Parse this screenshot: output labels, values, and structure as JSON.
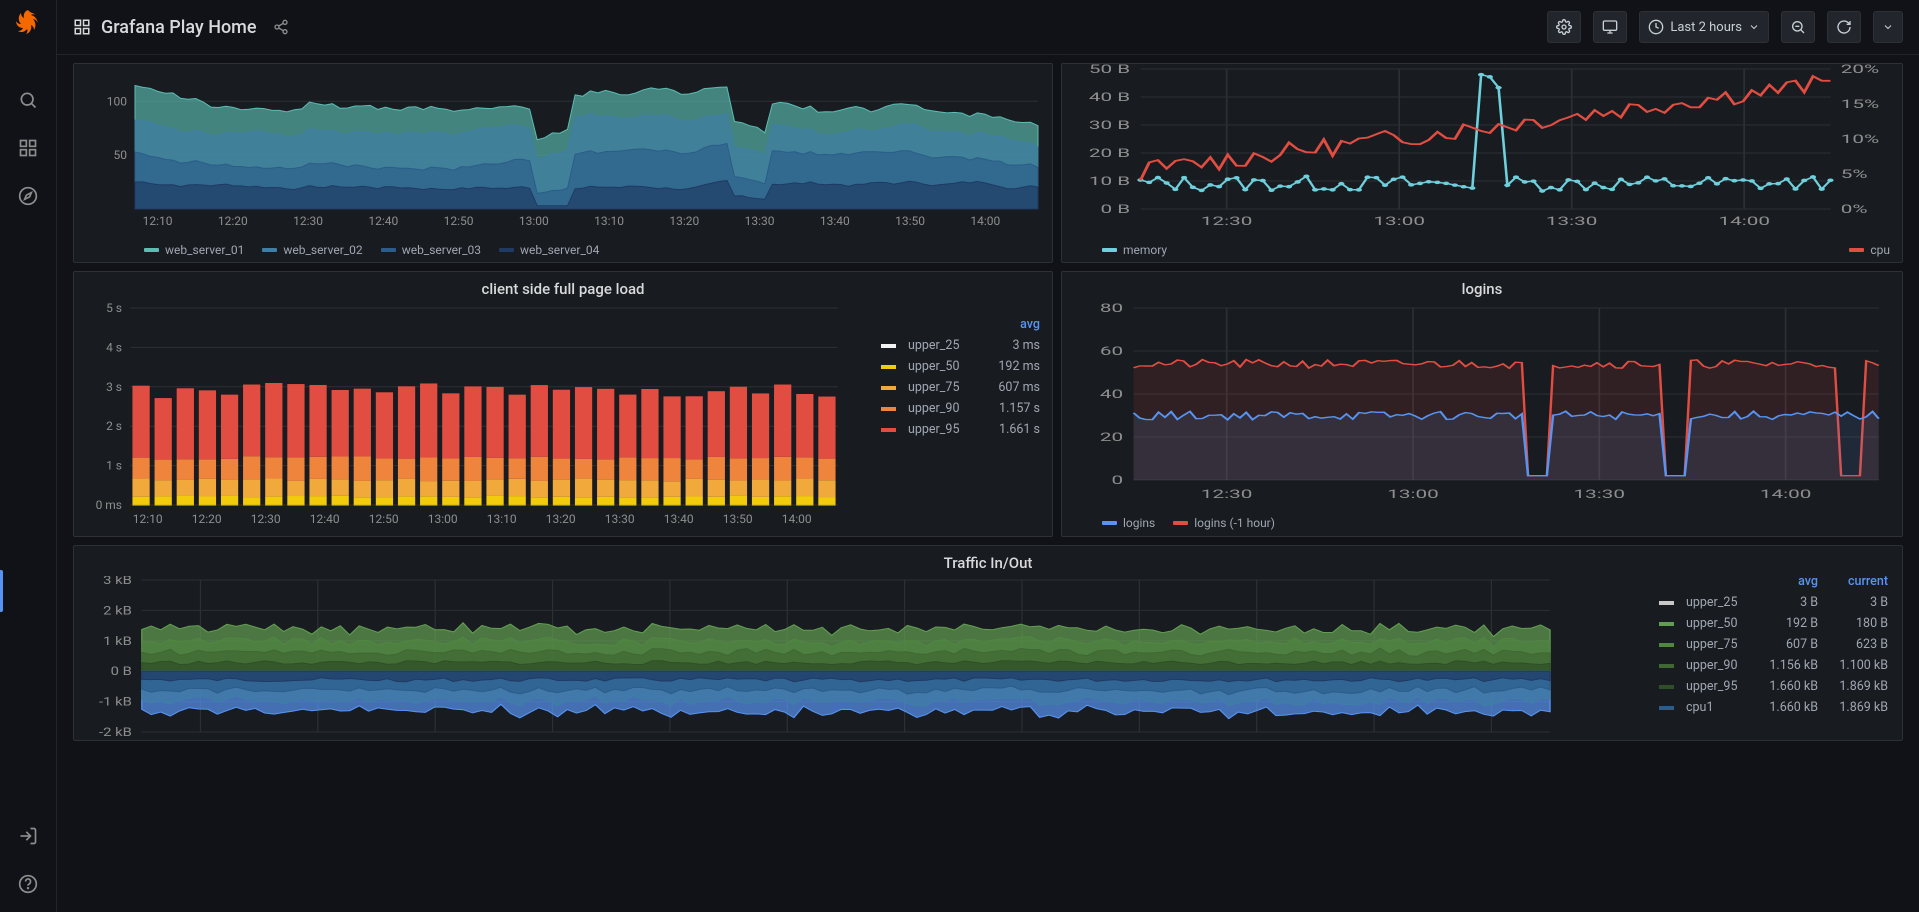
{
  "header": {
    "title": "Grafana Play Home",
    "time_range": "Last 2 hours"
  },
  "colors": {
    "bg": "#111217",
    "panel_bg": "#181b1f",
    "grid": "#2c2f34",
    "tick_text": "#8e8e8e",
    "accent_blue": "#5794f2"
  },
  "time_ticks": [
    "12:10",
    "12:20",
    "12:30",
    "12:40",
    "12:50",
    "13:00",
    "13:10",
    "13:20",
    "13:30",
    "13:40",
    "13:50",
    "14:00"
  ],
  "time_ticks_30": [
    "12:30",
    "13:00",
    "13:30",
    "14:00"
  ],
  "panel_webservers": {
    "type": "area",
    "yticks": [
      50,
      100
    ],
    "ylim": [
      0,
      130
    ],
    "series": [
      {
        "name": "web_server_01",
        "color": "#5bbdb4"
      },
      {
        "name": "web_server_02",
        "color": "#3f7ea6"
      },
      {
        "name": "web_server_03",
        "color": "#2b5c8a"
      },
      {
        "name": "web_server_04",
        "color": "#1f3a63"
      }
    ]
  },
  "panel_memcpu": {
    "type": "line",
    "left_ticks": [
      "0 B",
      "10 B",
      "20 B",
      "30 B",
      "40 B",
      "50 B"
    ],
    "right_ticks": [
      "0%",
      "5%",
      "10%",
      "15%",
      "20%"
    ],
    "series": [
      {
        "name": "memory",
        "color": "#6ed0dd",
        "side": "left"
      },
      {
        "name": "cpu",
        "color": "#e24d42",
        "side": "right"
      }
    ]
  },
  "panel_pageload": {
    "title": "client side full page load",
    "type": "bar",
    "yticks": [
      "0 ms",
      "1 s",
      "2 s",
      "3 s",
      "4 s",
      "5 s"
    ],
    "legend_header": "avg",
    "legend": [
      {
        "name": "upper_25",
        "color": "#f2f2f2",
        "value": "3 ms"
      },
      {
        "name": "upper_50",
        "color": "#f2cc0c",
        "value": "192 ms"
      },
      {
        "name": "upper_75",
        "color": "#f2a93b",
        "value": "607 ms"
      },
      {
        "name": "upper_90",
        "color": "#ef843c",
        "value": "1.157 s"
      },
      {
        "name": "upper_95",
        "color": "#e24d42",
        "value": "1.661 s"
      }
    ],
    "bar_colors": {
      "u25": "#f2f2f2",
      "u50": "#f2cc0c",
      "u75": "#f2a93b",
      "u90": "#ef843c",
      "u95": "#e24d42"
    }
  },
  "panel_logins": {
    "title": "logins",
    "type": "line",
    "yticks": [
      0,
      20,
      40,
      60,
      80
    ],
    "series": [
      {
        "name": "logins",
        "color": "#5794f2"
      },
      {
        "name": "logins (-1 hour)",
        "color": "#e24d42"
      }
    ]
  },
  "panel_traffic": {
    "title": "Traffic In/Out",
    "type": "area",
    "yticks": [
      "-2 kB",
      "-1 kB",
      "0 B",
      "1 kB",
      "2 kB",
      "3 kB"
    ],
    "legend_headers": [
      "avg",
      "current"
    ],
    "legend": [
      {
        "name": "upper_25",
        "color": "#c8c8c8",
        "avg": "3 B",
        "current": "3 B"
      },
      {
        "name": "upper_50",
        "color": "#629e51",
        "avg": "192 B",
        "current": "180 B"
      },
      {
        "name": "upper_75",
        "color": "#508642",
        "avg": "607 B",
        "current": "623 B"
      },
      {
        "name": "upper_90",
        "color": "#3f6833",
        "avg": "1.156 kB",
        "current": "1.100 kB"
      },
      {
        "name": "upper_95",
        "color": "#2f4f26",
        "avg": "1.660 kB",
        "current": "1.869 kB"
      },
      {
        "name": "cpu1",
        "color": "#2b5c8a",
        "avg": "1.660 kB",
        "current": "1.869 kB"
      }
    ],
    "pos_colors": [
      "#2f4f26",
      "#3f6833",
      "#508642",
      "#629e51"
    ],
    "neg_colors": [
      "#1f3a63",
      "#2b5c8a",
      "#3f7ea6",
      "#5794f2"
    ]
  }
}
